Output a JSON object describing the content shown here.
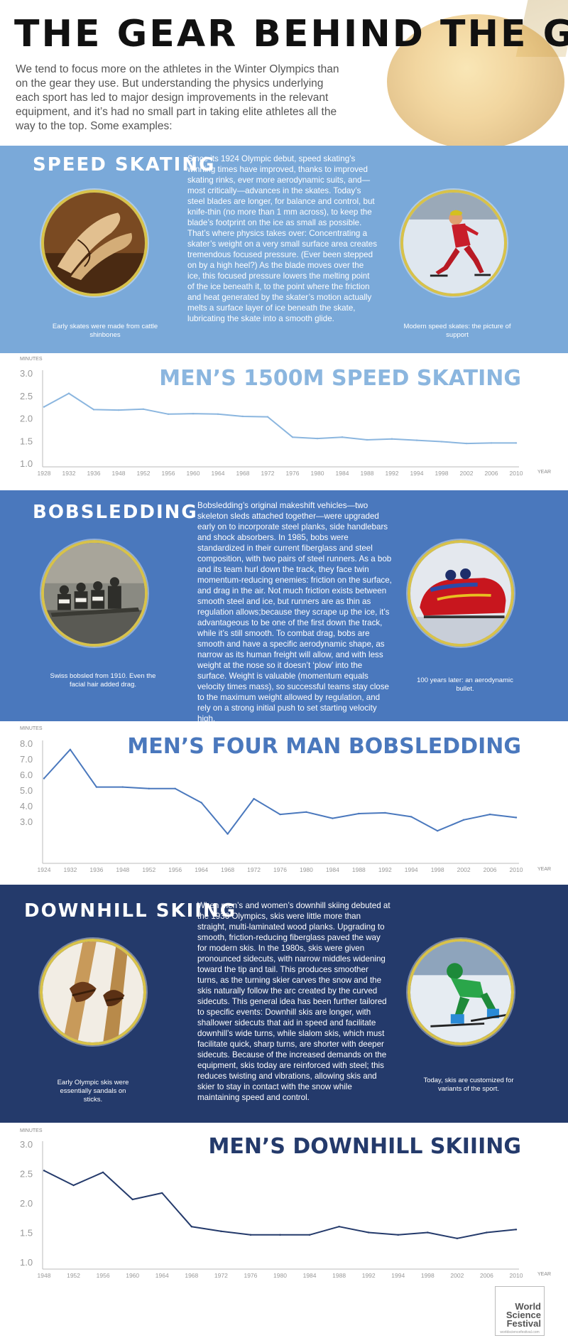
{
  "header": {
    "title": "THE GEAR BEHIND THE GOLD",
    "intro": "We tend to focus more on the athletes in the Winter Olympics than on the gear they use. But understanding the physics underlying each sport has led to major design improvements in the relevant equipment, and it’s had no small part in taking elite athletes all the way to the top. Some examples:"
  },
  "colors": {
    "speed_skating_band": "#7aa9d9",
    "speed_skating_line": "#8bb6df",
    "bobsledding_band": "#4a78bd",
    "bobsledding_line": "#4a78bd",
    "downhill_band": "#243a6b",
    "downhill_line": "#243a6b",
    "photo_ring": "#d8c24a"
  },
  "sections": {
    "speed_skating": {
      "title": "SPEED SKATING",
      "body": "Since its 1924 Olympic debut, speed skating’s winning times have improved, thanks to improved skating rinks, ever more aerodynamic suits, and—most critically—advances in the skates. Today’s steel blades are longer, for balance and control, but knife-thin (no more than 1 mm across), to keep the blade’s footprint on the ice as small as possible. That’s where physics takes over: Concentrating a skater’s weight on a very small surface area creates tremendous focused pressure. (Ever been stepped on by a high heel?) As the blade moves over the ice, this focused pressure lowers the melting point of the ice beneath it, to the point where the friction and heat generated by the skater’s motion actually melts a surface layer of ice beneath the skate, lubricating the skate into a smooth glide.",
      "left_caption": "Early skates were made from cattle shinbones",
      "right_caption": "Modern speed skates: the picture of support",
      "left_icon": "bone-skates-photo",
      "right_icon": "speed-skater-photo"
    },
    "bobsledding": {
      "title": "BOBSLEDDING",
      "body": "Bobsledding’s original makeshift vehicles—two skeleton sleds attached together—were upgraded early on to incorporate steel planks, side handlebars and shock absorbers. In 1985, bobs were standardized in their current fiberglass and steel composition, with two pairs of steel runners. As a bob and its team hurl down the track, they face twin momentum-reducing enemies: friction on the surface, and drag in the air. Not much friction exists between smooth steel and ice, but runners are as thin as regulation allows;because they scrape up the ice, it’s advantageous to be one of the first down the track, while it’s still smooth. To combat drag, bobs are smooth and have a specific aerodynamic shape, as narrow as its human freight will allow, and with less weight at the nose so it doesn’t ‘plow’ into the surface. Weight is valuable (momentum equals velocity times mass), so successful teams stay close to the maximum weight allowed by regulation, and rely on a strong initial push to set starting velocity high.",
      "left_caption": "Swiss bobsled from 1910. Even the facial hair added drag.",
      "right_caption": "100 years later: an aerodynamic bullet.",
      "left_icon": "vintage-bobsled-photo",
      "right_icon": "modern-bobsled-photo"
    },
    "downhill": {
      "title": "DOWNHILL SKIING",
      "body": "When men’s and women’s downhill skiing debuted at the 1936 Olympics, skis were little more than straight, multi-laminated wood planks. Upgrading to smooth, friction-reducing fiberglass paved the way for modern skis. In the 1980s, skis were given pronounced sidecuts, with narrow middles widening toward the tip and tail. This produces smoother turns, as the turning skier carves the snow and the skis naturally follow the arc created by the curved sidecuts. This general idea has been further tailored to specific events: Downhill skis are longer, with shallower sidecuts that aid in speed and facilitate downhill’s wide turns, while slalom skis, which must facilitate quick, sharp turns, are shorter with deeper sidecuts. Because of the increased demands on the equipment, skis today are reinforced with steel; this reduces twisting and vibrations, allowing skis and skier to stay in contact with the snow while maintaining speed and control.",
      "left_caption": "Early Olympic skis were essentially sandals on sticks.",
      "right_caption": "Today, skis are customized for variants of the sport.",
      "left_icon": "wooden-skis-photo",
      "right_icon": "downhill-skier-photo"
    }
  },
  "chart_data": [
    {
      "type": "line",
      "title": "MEN’S 1500M SPEED SKATING",
      "ylabel": "MINUTES",
      "xlabel": "YEAR",
      "ylim": [
        1.0,
        3.0
      ],
      "yticks": [
        "3.0",
        "2.5",
        "2.0",
        "1.5",
        "1.0"
      ],
      "categories": [
        "1928",
        "1932",
        "1936",
        "1948",
        "1952",
        "1956",
        "1960",
        "1964",
        "1968",
        "1972",
        "1976",
        "1980",
        "1984",
        "1988",
        "1992",
        "1994",
        "1998",
        "2002",
        "2006",
        "2010"
      ],
      "values": [
        2.25,
        2.55,
        2.19,
        2.18,
        2.2,
        2.09,
        2.1,
        2.09,
        2.04,
        2.03,
        1.58,
        1.55,
        1.58,
        1.52,
        1.54,
        1.51,
        1.48,
        1.44,
        1.45,
        1.45
      ],
      "grid": false
    },
    {
      "type": "line",
      "title": "MEN’S FOUR MAN BOBSLEDDING",
      "ylabel": "MINUTES",
      "xlabel": "YEAR",
      "ylim": [
        2.0,
        8.0
      ],
      "yticks": [
        "8.0",
        "7.0",
        "6.0",
        "5.0",
        "4.0",
        "3.0"
      ],
      "categories": [
        "1924",
        "1932",
        "1936",
        "1948",
        "1952",
        "1956",
        "1964",
        "1968",
        "1972",
        "1976",
        "1980",
        "1984",
        "1988",
        "1992",
        "1994",
        "1998",
        "2002",
        "2006",
        "2010"
      ],
      "values": [
        5.75,
        7.6,
        5.2,
        5.2,
        5.1,
        5.1,
        4.2,
        2.2,
        4.45,
        3.45,
        3.6,
        3.2,
        3.5,
        3.55,
        3.3,
        2.4,
        3.1,
        3.45,
        3.25
      ],
      "grid": false
    },
    {
      "type": "line",
      "title": "MEN’S DOWNHILL SKIIING",
      "ylabel": "MINUTES",
      "xlabel": "YEAR",
      "ylim": [
        1.0,
        3.0
      ],
      "yticks": [
        "3.0",
        "2.5",
        "2.0",
        "1.5",
        "1.0"
      ],
      "categories": [
        "1948",
        "1952",
        "1956",
        "1960",
        "1964",
        "1968",
        "1972",
        "1976",
        "1980",
        "1984",
        "1988",
        "1992",
        "1994",
        "1998",
        "2002",
        "2006",
        "2010"
      ],
      "values": [
        2.55,
        2.3,
        2.52,
        2.06,
        2.17,
        1.6,
        1.52,
        1.46,
        1.46,
        1.46,
        1.6,
        1.5,
        1.46,
        1.5,
        1.4,
        1.5,
        1.55
      ],
      "grid": false
    }
  ],
  "footer": {
    "logo_line1": "World",
    "logo_line2": "Science",
    "logo_line3": "Festival",
    "logo_url": "worldsciencefestival.com"
  }
}
